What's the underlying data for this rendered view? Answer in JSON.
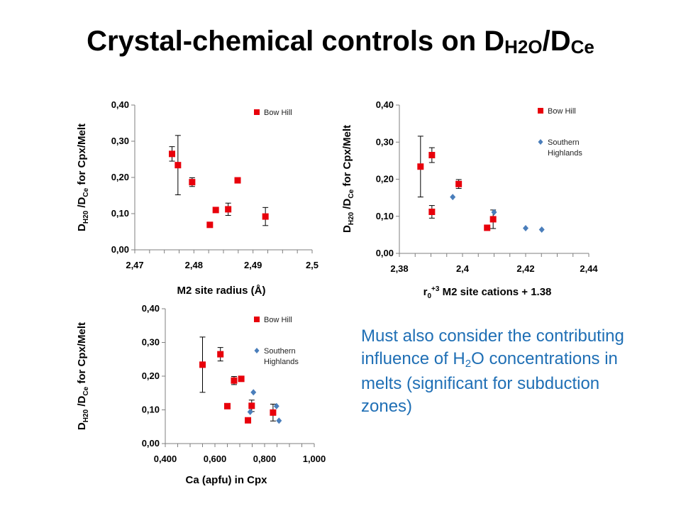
{
  "title": {
    "pre": "Crystal-chemical controls on D",
    "sub1": "H2O",
    "mid": "/D",
    "sub2": "Ce"
  },
  "note": {
    "pre": "Must also consider the contributing influence of H",
    "sub": "2",
    "post": "O concentrations in melts (significant for subduction zones)",
    "color": "#1f6fb5"
  },
  "colors": {
    "bow_hill": "#e8000b",
    "southern_highlands": "#4a7ebb",
    "axis": "#7f7f7f"
  },
  "chart_data": [
    {
      "id": "c1",
      "type": "scatter",
      "xlabel_parts": [
        "M2 site radius (Å)"
      ],
      "ylabel_parts": [
        "D",
        "H20",
        " /D",
        "Ce",
        "  for Cpx/Melt"
      ],
      "x_ticks": [
        "2,47",
        "2,48",
        "2,49",
        "2,5"
      ],
      "y_ticks": [
        "0,00",
        "0,10",
        "0,20",
        "0,30",
        "0,40"
      ],
      "xlim": [
        2.47,
        2.5
      ],
      "ylim": [
        0,
        0.4
      ],
      "legend_position": "top-right",
      "series": [
        {
          "name": "Bow Hill",
          "marker": "square",
          "color": "#e8000b",
          "points": [
            {
              "x": 2.4763,
              "y": 0.265,
              "err": 0.02
            },
            {
              "x": 2.4773,
              "y": 0.234,
              "err": 0.082
            },
            {
              "x": 2.4797,
              "y": 0.187,
              "err": 0.012
            },
            {
              "x": 2.4827,
              "y": 0.069,
              "err": 0
            },
            {
              "x": 2.4837,
              "y": 0.11,
              "err": 0
            },
            {
              "x": 2.4858,
              "y": 0.112,
              "err": 0.017
            },
            {
              "x": 2.4874,
              "y": 0.192,
              "err": 0.007
            },
            {
              "x": 2.4921,
              "y": 0.092,
              "err": 0.025
            }
          ]
        }
      ]
    },
    {
      "id": "c2",
      "type": "scatter",
      "xlabel_parts": [
        "r",
        "0",
        "+3",
        " M2 site cations + 1.38"
      ],
      "ylabel_parts": [
        "D",
        "H20",
        " /D",
        "Ce",
        "  for Cpx/Melt"
      ],
      "x_ticks": [
        "2,38",
        "2,4",
        "2,42",
        "2,44"
      ],
      "y_ticks": [
        "0,00",
        "0,10",
        "0,20",
        "0,30",
        "0,40"
      ],
      "xlim": [
        2.38,
        2.44
      ],
      "ylim": [
        0,
        0.4
      ],
      "legend_position": "top-right",
      "series": [
        {
          "name": "Bow Hill",
          "marker": "square",
          "color": "#e8000b",
          "points": [
            {
              "x": 2.3867,
              "y": 0.234,
              "err": 0.082
            },
            {
              "x": 2.3903,
              "y": 0.265,
              "err": 0.02
            },
            {
              "x": 2.3903,
              "y": 0.112,
              "err": 0.017
            },
            {
              "x": 2.3988,
              "y": 0.187,
              "err": 0.012
            },
            {
              "x": 2.4078,
              "y": 0.069,
              "err": 0
            },
            {
              "x": 2.4097,
              "y": 0.092,
              "err": 0.025
            }
          ]
        },
        {
          "name": "Southern Highlands",
          "name_lines": [
            "Southern",
            "Highlands"
          ],
          "marker": "diamond",
          "color": "#4a7ebb",
          "points": [
            {
              "x": 2.3969,
              "y": 0.152
            },
            {
              "x": 2.41,
              "y": 0.111
            },
            {
              "x": 2.42,
              "y": 0.068
            },
            {
              "x": 2.4251,
              "y": 0.064
            }
          ]
        }
      ]
    },
    {
      "id": "c3",
      "type": "scatter",
      "xlabel_parts": [
        "Ca (apfu) in Cpx"
      ],
      "ylabel_parts": [
        "D",
        "H20",
        " /D",
        "Ce",
        "  for Cpx/Melt"
      ],
      "x_ticks": [
        "0,400",
        "0,600",
        "0,800",
        "1,000"
      ],
      "y_ticks": [
        "0,00",
        "0,10",
        "0,20",
        "0,30",
        "0,40"
      ],
      "xlim": [
        0.4,
        1.0
      ],
      "ylim": [
        0,
        0.4
      ],
      "legend_position": "top-right",
      "series": [
        {
          "name": "Bow Hill",
          "marker": "square",
          "color": "#e8000b",
          "points": [
            {
              "x": 0.55,
              "y": 0.234,
              "err": 0.082
            },
            {
              "x": 0.622,
              "y": 0.265,
              "err": 0.02
            },
            {
              "x": 0.65,
              "y": 0.111,
              "err": 0
            },
            {
              "x": 0.677,
              "y": 0.187,
              "err": 0.012
            },
            {
              "x": 0.706,
              "y": 0.192,
              "err": 0.007
            },
            {
              "x": 0.733,
              "y": 0.069,
              "err": 0
            },
            {
              "x": 0.748,
              "y": 0.112,
              "err": 0.017
            },
            {
              "x": 0.834,
              "y": 0.092,
              "err": 0.025
            }
          ]
        },
        {
          "name": "Southern Highlands",
          "name_lines": [
            "Southern",
            "Highlands"
          ],
          "marker": "diamond",
          "color": "#4a7ebb",
          "points": [
            {
              "x": 0.742,
              "y": 0.094
            },
            {
              "x": 0.755,
              "y": 0.152
            },
            {
              "x": 0.848,
              "y": 0.111
            },
            {
              "x": 0.858,
              "y": 0.068
            }
          ]
        }
      ]
    }
  ]
}
